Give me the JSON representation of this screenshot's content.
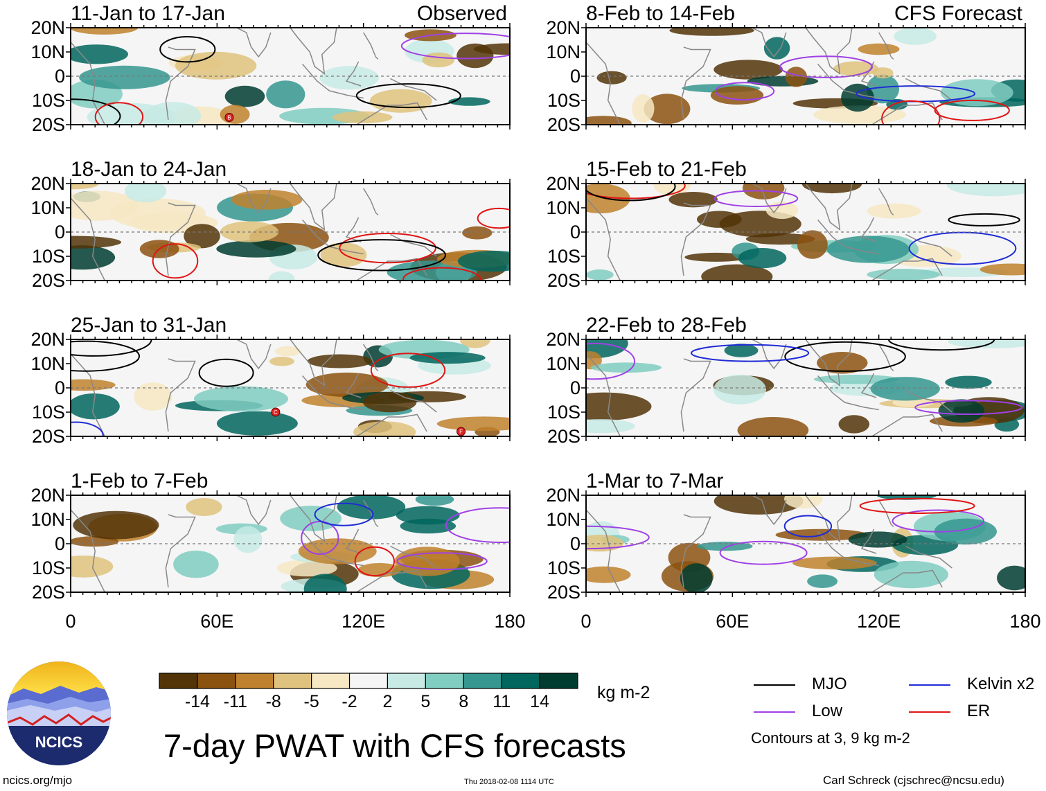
{
  "title": "7-day PWAT with CFS forecasts",
  "units": "kg m-2",
  "site": "ncics.org/mjo",
  "timestamp": "Thu 2018-02-08 1114 UTC",
  "author": "Carl Schreck (cjschrec@ncsu.edu)",
  "logo_text": "NCICS",
  "contour_note": "Contours at 3, 9 kg m-2",
  "legend": [
    {
      "label": "MJO",
      "color": "#000000"
    },
    {
      "label": "Kelvin x2",
      "color": "#1f2bd6"
    },
    {
      "label": "Low",
      "color": "#a040e6"
    },
    {
      "label": "ER",
      "color": "#e01414"
    }
  ],
  "colorbar": {
    "ticks": [
      "-14",
      "-11",
      "-8",
      "-5",
      "-2",
      "2",
      "5",
      "8",
      "11",
      "14"
    ],
    "colors": [
      "#523408",
      "#8c5210",
      "#bf812d",
      "#dfc27d",
      "#f6e8c3",
      "#f5f5f5",
      "#c7eae5",
      "#80cdc1",
      "#35978f",
      "#01665e",
      "#003c30"
    ]
  },
  "chart_data": {
    "type": "heatmap",
    "variable": "7-day precipitable water (PWAT) anomaly",
    "xaxis": {
      "ticks": [
        "0",
        "60E",
        "120E",
        "180"
      ],
      "range": [
        0,
        180
      ]
    },
    "yaxis": {
      "ticks": [
        "20N",
        "10N",
        "0",
        "10S",
        "20S"
      ],
      "range": [
        -20,
        20
      ]
    },
    "columns": [
      {
        "heading": "Observed",
        "panels": [
          "11-Jan to 17-Jan",
          "18-Jan to 24-Jan",
          "25-Jan to 31-Jan",
          "1-Feb to 7-Feb"
        ]
      },
      {
        "heading": "CFS Forecast",
        "panels": [
          "8-Feb to 14-Feb",
          "15-Feb to 21-Feb",
          "22-Feb to 28-Feb",
          "1-Mar to 7-Mar"
        ]
      }
    ],
    "storm_markers": [
      {
        "panel": "11-Jan to 17-Jan",
        "label": "B",
        "lon": 65,
        "lat": -17
      },
      {
        "panel": "25-Jan to 31-Jan",
        "label": "C",
        "lon": 84,
        "lat": -10
      },
      {
        "panel": "25-Jan to 31-Jan",
        "label": "F",
        "lon": 160,
        "lat": -18
      }
    ]
  }
}
